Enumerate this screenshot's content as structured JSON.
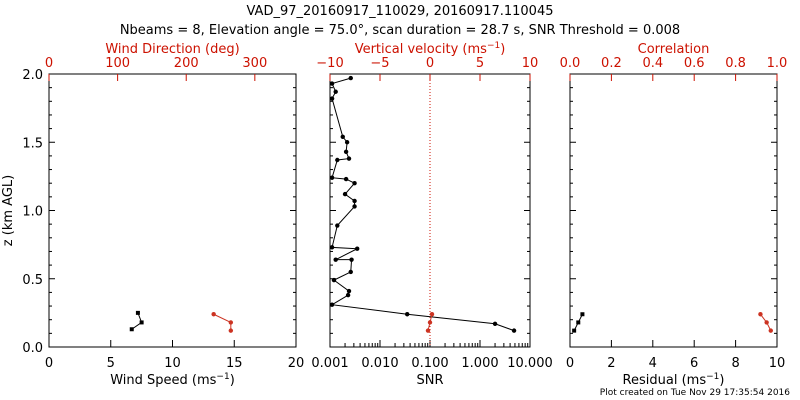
{
  "header": {
    "title_line1": "VAD_97_20160917_110029, 20160917.110045",
    "title_line2": "Nbeams = 8, Elevation angle = 75.0°, scan duration = 28.7 s, SNR Threshold = 0.008"
  },
  "footer": {
    "created": "Plot created on Tue Nov 29 17:35:54 2016"
  },
  "colors": {
    "black": "#000000",
    "red": "#cc1100",
    "point_red": "#cc3322"
  },
  "chart_data": [
    {
      "type": "line",
      "panel": "left",
      "ylabel": "z (km AGL)",
      "ylim": [
        0.0,
        2.0
      ],
      "y_ticks": [
        "0.0",
        "0.5",
        "1.0",
        "1.5",
        "2.0"
      ],
      "bottom_axis": {
        "label_pre": "Wind Speed (ms",
        "label_sup": "−1",
        "label_post": ")",
        "range": [
          0,
          20
        ],
        "ticks": [
          "0",
          "5",
          "10",
          "15",
          "20"
        ],
        "color": "#000000"
      },
      "top_axis": {
        "label": "Wind Direction (deg)",
        "range": [
          0,
          360
        ],
        "ticks": [
          "0",
          "100",
          "200",
          "300"
        ],
        "color": "#cc1100"
      },
      "series": [
        {
          "axis": "bottom",
          "color": "#000000",
          "marker": "square",
          "points": [
            [
              7.2,
              0.25
            ],
            [
              7.5,
              0.18
            ],
            [
              6.7,
              0.13
            ]
          ]
        },
        {
          "axis": "top",
          "color": "#cc3322",
          "marker": "circle",
          "points": [
            [
              240,
              0.24
            ],
            [
              265,
              0.18
            ],
            [
              265,
              0.12
            ]
          ]
        }
      ]
    },
    {
      "type": "line",
      "panel": "middle",
      "ylim": [
        0.0,
        2.0
      ],
      "bottom_axis": {
        "label": "SNR",
        "scale": "log",
        "range": [
          0.001,
          10.0
        ],
        "ticks": [
          "0.001",
          "0.010",
          "0.100",
          "1.000",
          "10.000"
        ],
        "color": "#000000"
      },
      "top_axis": {
        "label_pre": "Vertical velocity (ms",
        "label_sup": "−1",
        "label_post": ")",
        "range": [
          -10,
          10
        ],
        "ticks": [
          "−10",
          "−5",
          "0",
          "5",
          "10"
        ],
        "color": "#cc1100"
      },
      "reference_line": {
        "axis": "top",
        "value": 0,
        "style": "dotted",
        "color": "#cc1100"
      },
      "series": [
        {
          "axis": "bottom",
          "color": "#000000",
          "marker": "circle",
          "points": [
            [
              0.0026,
              1.97
            ],
            [
              0.0011,
              1.93
            ],
            [
              0.0013,
              1.87
            ],
            [
              0.0011,
              1.82
            ],
            [
              0.0018,
              1.54
            ],
            [
              0.0022,
              1.5
            ],
            [
              0.0021,
              1.43
            ],
            [
              0.0024,
              1.38
            ],
            [
              0.0014,
              1.37
            ],
            [
              0.0011,
              1.24
            ],
            [
              0.0021,
              1.23
            ],
            [
              0.0031,
              1.2
            ],
            [
              0.002,
              1.12
            ],
            [
              0.0031,
              1.07
            ],
            [
              0.0031,
              1.03
            ],
            [
              0.0014,
              0.89
            ],
            [
              0.0011,
              0.73
            ],
            [
              0.0035,
              0.72
            ],
            [
              0.0013,
              0.64
            ],
            [
              0.0027,
              0.64
            ],
            [
              0.0026,
              0.55
            ],
            [
              0.0012,
              0.49
            ],
            [
              0.0024,
              0.41
            ],
            [
              0.0023,
              0.38
            ],
            [
              0.0011,
              0.31
            ],
            [
              0.035,
              0.24
            ],
            [
              2.0,
              0.17
            ],
            [
              4.8,
              0.12
            ]
          ]
        },
        {
          "axis": "top",
          "color": "#cc3322",
          "marker": "circle",
          "points": [
            [
              0.2,
              0.24
            ],
            [
              0.0,
              0.18
            ],
            [
              -0.2,
              0.12
            ]
          ]
        }
      ]
    },
    {
      "type": "line",
      "panel": "right",
      "ylim": [
        0.0,
        2.0
      ],
      "bottom_axis": {
        "label_pre": "Residual (ms",
        "label_sup": "−1",
        "label_post": ")",
        "range": [
          0,
          10
        ],
        "ticks": [
          "0",
          "2",
          "4",
          "6",
          "8",
          "10"
        ],
        "color": "#000000"
      },
      "top_axis": {
        "label": "Correlation",
        "range": [
          0.0,
          1.0
        ],
        "ticks": [
          "0.0",
          "0.2",
          "0.4",
          "0.6",
          "0.8",
          "1.0"
        ],
        "color": "#cc1100"
      },
      "series": [
        {
          "axis": "bottom",
          "color": "#000000",
          "marker": "square",
          "points": [
            [
              0.6,
              0.24
            ],
            [
              0.4,
              0.18
            ],
            [
              0.2,
              0.12
            ]
          ]
        },
        {
          "axis": "top",
          "color": "#cc3322",
          "marker": "circle",
          "points": [
            [
              0.92,
              0.24
            ],
            [
              0.95,
              0.18
            ],
            [
              0.97,
              0.12
            ]
          ]
        }
      ]
    }
  ]
}
